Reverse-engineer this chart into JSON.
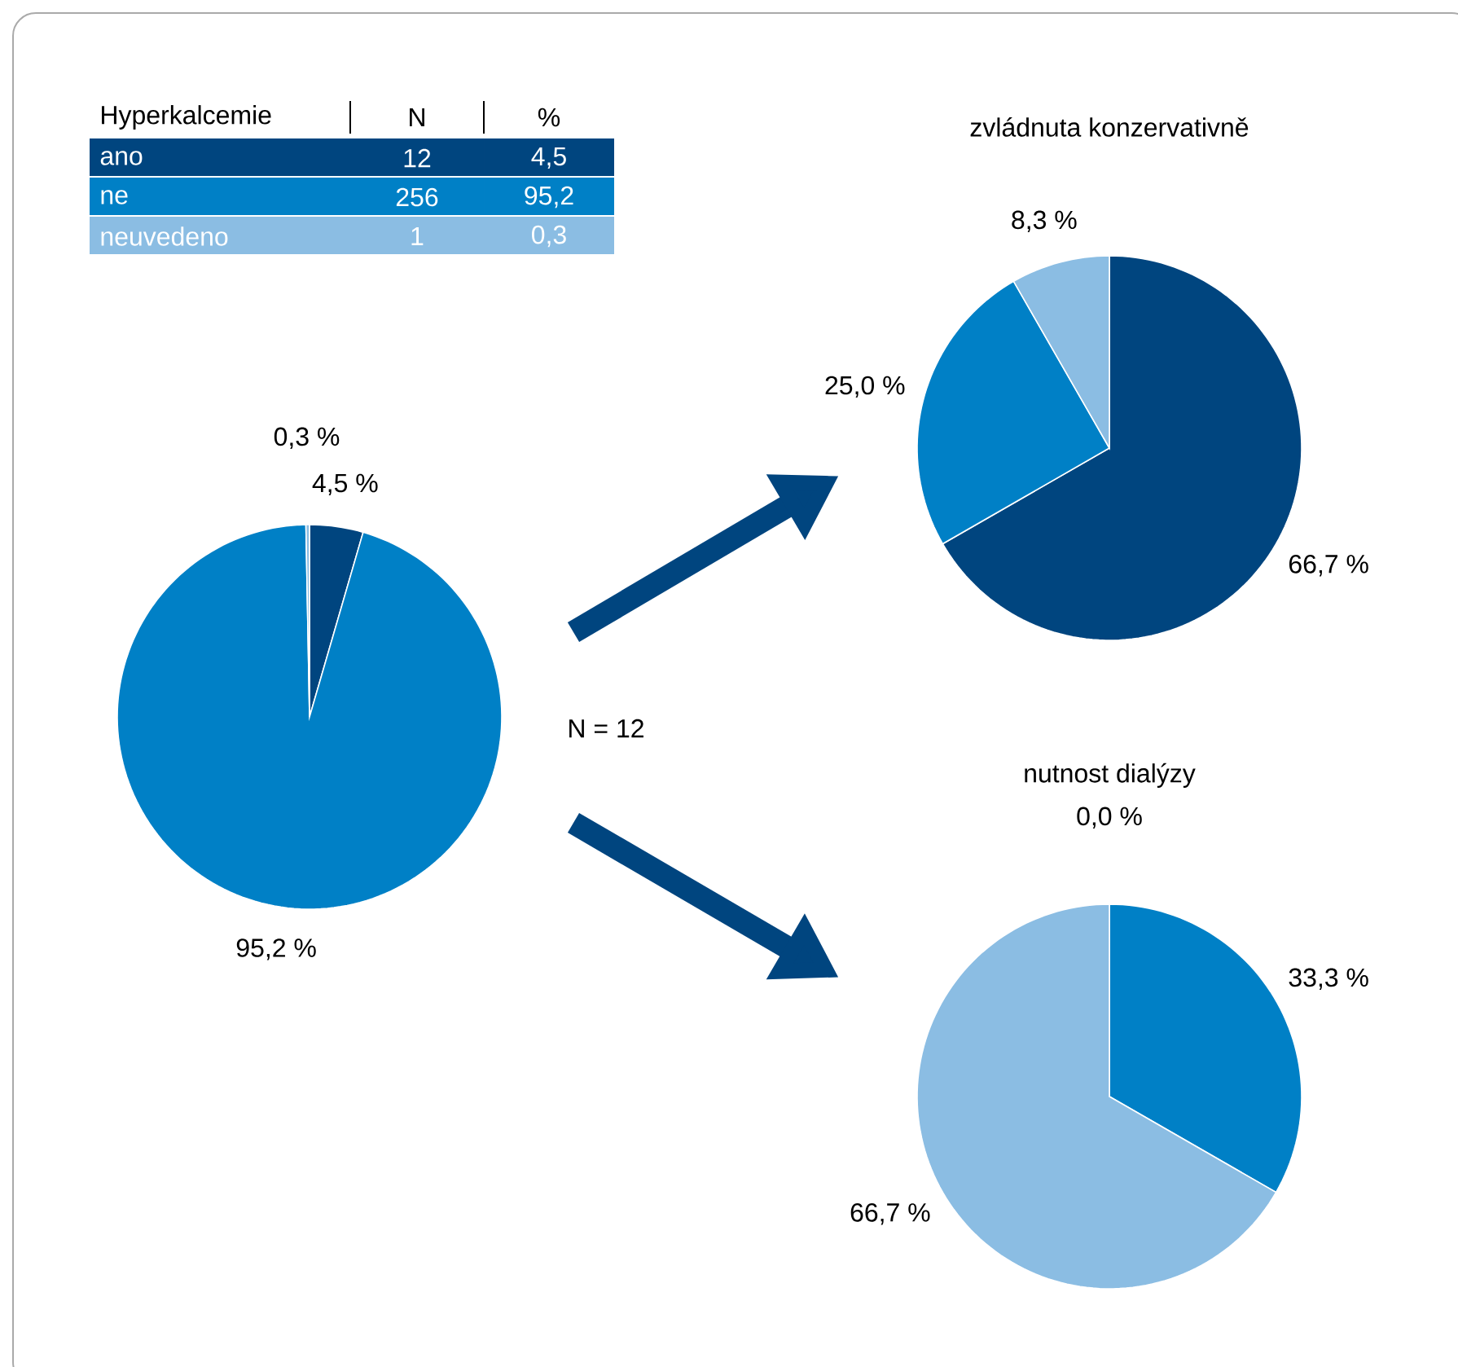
{
  "chart_data": [
    {
      "type": "other",
      "annotations": [
        "Hyperkalcemie",
        "N",
        "%",
        "ano",
        "12",
        "4,5",
        "ne",
        "256",
        "95,2",
        "neuvedeno",
        "1",
        "0,3"
      ]
    },
    {
      "type": "pie",
      "categories": [
        null,
        null,
        null
      ],
      "values": [
        4.5,
        95.2,
        0.3
      ],
      "colors": [
        "#00457f",
        "#0080c6",
        "#8bbde3"
      ],
      "value_labels": [
        "4,5 %",
        "95,2 %",
        "0,3 %"
      ],
      "annotations": [
        "N = 12"
      ]
    },
    {
      "type": "pie",
      "title": "zvládnuta konzervativně",
      "categories": [
        null,
        null,
        null
      ],
      "values": [
        66.7,
        25.0,
        8.3
      ],
      "colors": [
        "#00457f",
        "#0080c6",
        "#8bbde3"
      ],
      "value_labels": [
        "66,7 %",
        "25,0 %",
        "8,3 %"
      ]
    },
    {
      "type": "pie",
      "title": "nutnost dialýzy",
      "categories": [
        null,
        null,
        null
      ],
      "values": [
        0.0,
        33.3,
        66.7
      ],
      "colors": [
        "#00457f",
        "#0080c6",
        "#8bbde3"
      ],
      "value_labels": [
        "0,0 %",
        "33,3 %",
        "66,7 %"
      ]
    }
  ]
}
